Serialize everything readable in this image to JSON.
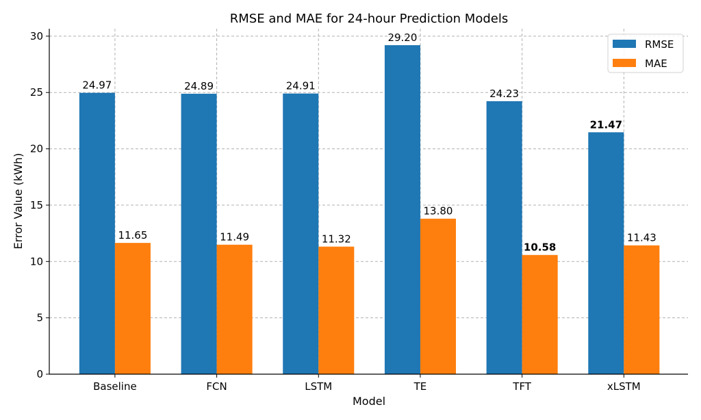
{
  "chart_data": {
    "type": "bar",
    "title": "RMSE and MAE for 24-hour Prediction Models",
    "xlabel": "Model",
    "ylabel": "Error Value (kWh)",
    "categories": [
      "Baseline",
      "FCN",
      "LSTM",
      "TE",
      "TFT",
      "xLSTM"
    ],
    "series": [
      {
        "name": "RMSE",
        "color": "#1f77b4",
        "values": [
          24.97,
          24.89,
          24.91,
          29.2,
          24.23,
          21.47
        ],
        "labels": [
          "24.97",
          "24.89",
          "24.91",
          "29.20",
          "24.23",
          "21.47"
        ],
        "bold_index": 5
      },
      {
        "name": "MAE",
        "color": "#ff7f0e",
        "values": [
          11.65,
          11.49,
          11.32,
          13.8,
          10.58,
          11.43
        ],
        "labels": [
          "11.65",
          "11.49",
          "11.32",
          "13.80",
          "10.58",
          "11.43"
        ],
        "bold_index": 4
      }
    ],
    "ylim": [
      0,
      30.66
    ],
    "yticks": [
      0,
      5,
      10,
      15,
      20,
      25,
      30
    ],
    "grid": true,
    "legend": "top-right"
  }
}
